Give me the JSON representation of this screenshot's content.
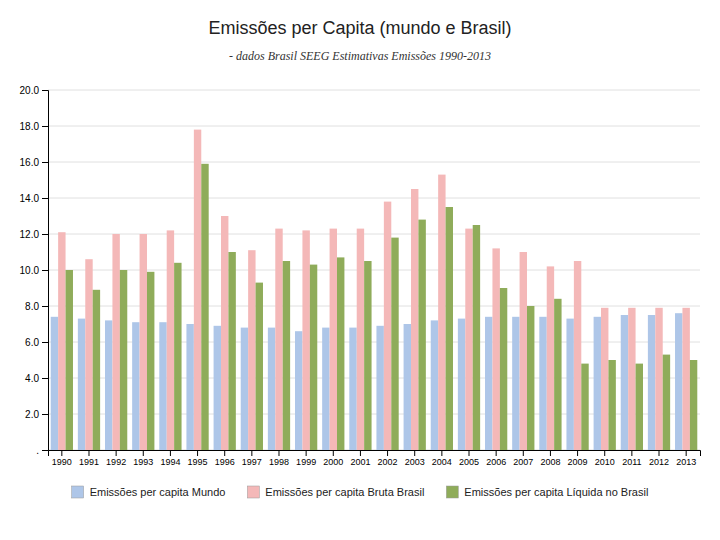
{
  "chart_data": {
    "type": "bar",
    "title": "Emissões per Capita (mundo e Brasil)",
    "subtitle": "- dados Brasil SEEG Estimativas Emissões 1990-2013",
    "categories": [
      "1990",
      "1991",
      "1992",
      "1993",
      "1994",
      "1995",
      "1996",
      "1997",
      "1998",
      "1999",
      "2000",
      "2001",
      "2002",
      "2003",
      "2004",
      "2005",
      "2006",
      "2007",
      "2008",
      "2009",
      "2010",
      "2011",
      "2012",
      "2013"
    ],
    "series": [
      {
        "name": "Emissões per capita Mundo",
        "color": "#aec6e8",
        "values": [
          7.4,
          7.3,
          7.2,
          7.1,
          7.1,
          7.0,
          6.9,
          6.8,
          6.8,
          6.6,
          6.8,
          6.8,
          6.9,
          7.0,
          7.2,
          7.3,
          7.4,
          7.4,
          7.4,
          7.3,
          7.4,
          7.5,
          7.5,
          7.6
        ]
      },
      {
        "name": "Emissões per capita Bruta Brasil",
        "color": "#f4b8b8",
        "values": [
          12.1,
          10.6,
          12.0,
          12.0,
          12.2,
          17.8,
          13.0,
          11.1,
          12.3,
          12.2,
          12.3,
          12.3,
          13.8,
          14.5,
          15.3,
          12.3,
          11.2,
          11.0,
          10.2,
          10.5,
          7.9,
          7.9,
          7.9,
          7.9
        ]
      },
      {
        "name": "Emissões per capita Líquida no Brasil",
        "color": "#8fac5a",
        "values": [
          10.0,
          8.9,
          10.0,
          9.9,
          10.4,
          15.9,
          11.0,
          9.3,
          10.5,
          10.3,
          10.7,
          10.5,
          11.8,
          12.8,
          13.5,
          12.5,
          9.0,
          8.0,
          8.4,
          4.8,
          5.0,
          4.8,
          5.3,
          5.0
        ]
      }
    ],
    "ylim": [
      0,
      20
    ],
    "yticks": [
      {
        "value": 0,
        "label": "."
      },
      {
        "value": 2,
        "label": "2.0"
      },
      {
        "value": 4,
        "label": "4.0"
      },
      {
        "value": 6,
        "label": "6.0"
      },
      {
        "value": 8,
        "label": "8.0"
      },
      {
        "value": 10,
        "label": "10.0"
      },
      {
        "value": 12,
        "label": "12.0"
      },
      {
        "value": 14,
        "label": "14.0"
      },
      {
        "value": 16,
        "label": "16.0"
      },
      {
        "value": 18,
        "label": "18.0"
      },
      {
        "value": 20,
        "label": "20.0"
      }
    ],
    "grid": true,
    "legend": "bottom"
  }
}
